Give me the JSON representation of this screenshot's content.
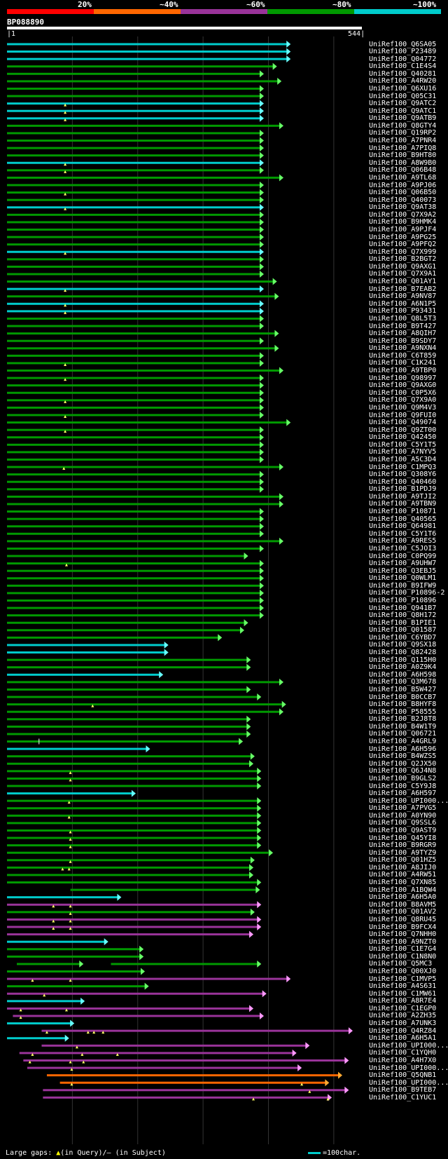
{
  "query": {
    "id": "BP088890",
    "start": "1",
    "end": "544",
    "length": 544
  },
  "identity_scale": {
    "labels": [
      "20%",
      "~40%",
      "~60%",
      "~80%",
      "~100%"
    ],
    "colors": [
      "#ff0000",
      "#ff6600",
      "#993399",
      "#009900",
      "#00cccc"
    ]
  },
  "legend": {
    "gaps_label": "Large gaps:",
    "query_gap": "(in Query)",
    "subject_gap": "(in Subject)",
    "scale_label": "=100char."
  },
  "hits": [
    {
      "name": "UniRef100_Q6SA05",
      "s": 1,
      "e": 435,
      "c": "cyan"
    },
    {
      "name": "UniRef100_P23489",
      "s": 1,
      "e": 435,
      "c": "cyan"
    },
    {
      "name": "UniRef100_Q04772",
      "s": 1,
      "e": 435,
      "c": "cyan"
    },
    {
      "name": "UniRef100_C1E4S4",
      "s": 1,
      "e": 414,
      "c": "green"
    },
    {
      "name": "UniRef100_Q40281",
      "s": 1,
      "e": 394,
      "c": "green"
    },
    {
      "name": "UniRef100_A4RW20",
      "s": 1,
      "e": 421,
      "c": "green"
    },
    {
      "name": "UniRef100_Q6XU16",
      "s": 1,
      "e": 394,
      "c": "green"
    },
    {
      "name": "UniRef100_Q05C31",
      "s": 1,
      "e": 394,
      "c": "green"
    },
    {
      "name": "UniRef100_Q9ATC2",
      "s": 1,
      "e": 394,
      "c": "cyan",
      "gq": [
        90
      ]
    },
    {
      "name": "UniRef100_Q9ATC1",
      "s": 1,
      "e": 394,
      "c": "cyan",
      "gq": [
        90
      ]
    },
    {
      "name": "UniRef100_Q9ATB9",
      "s": 1,
      "e": 394,
      "c": "cyan",
      "gq": [
        90
      ]
    },
    {
      "name": "UniRef100_Q8GTY4",
      "s": 1,
      "e": 424,
      "c": "green"
    },
    {
      "name": "UniRef100_Q19RP2",
      "s": 1,
      "e": 394,
      "c": "green"
    },
    {
      "name": "UniRef100_A7PNR4",
      "s": 1,
      "e": 394,
      "c": "green"
    },
    {
      "name": "UniRef100_A7PIQ8",
      "s": 1,
      "e": 394,
      "c": "green"
    },
    {
      "name": "UniRef100_B9HT80",
      "s": 1,
      "e": 394,
      "c": "green"
    },
    {
      "name": "UniRef100_A8W9B0",
      "s": 1,
      "e": 394,
      "c": "cyan",
      "gq": [
        90
      ]
    },
    {
      "name": "UniRef100_Q06B48",
      "s": 1,
      "e": 394,
      "c": "green",
      "gq": [
        90
      ]
    },
    {
      "name": "UniRef100_A9TL68",
      "s": 1,
      "e": 424,
      "c": "green"
    },
    {
      "name": "UniRef100_A9PJ06",
      "s": 1,
      "e": 394,
      "c": "green"
    },
    {
      "name": "UniRef100_Q06B50",
      "s": 1,
      "e": 394,
      "c": "green",
      "gq": [
        90
      ]
    },
    {
      "name": "UniRef100_Q40073",
      "s": 1,
      "e": 394,
      "c": "green"
    },
    {
      "name": "UniRef100_Q9AT38",
      "s": 1,
      "e": 394,
      "c": "cyan",
      "gq": [
        90
      ]
    },
    {
      "name": "UniRef100_Q7X9A2",
      "s": 1,
      "e": 394,
      "c": "green"
    },
    {
      "name": "UniRef100_B9HMK4",
      "s": 1,
      "e": 394,
      "c": "green"
    },
    {
      "name": "UniRef100_A9PJF4",
      "s": 1,
      "e": 394,
      "c": "green"
    },
    {
      "name": "UniRef100_A9PG25",
      "s": 1,
      "e": 394,
      "c": "green"
    },
    {
      "name": "UniRef100_A9PFQ2",
      "s": 1,
      "e": 394,
      "c": "green"
    },
    {
      "name": "UniRef100_Q7X999",
      "s": 1,
      "e": 394,
      "c": "cyan",
      "gq": [
        90
      ]
    },
    {
      "name": "UniRef100_B2BGT2",
      "s": 1,
      "e": 394,
      "c": "green"
    },
    {
      "name": "UniRef100_Q9AXG1",
      "s": 1,
      "e": 394,
      "c": "green"
    },
    {
      "name": "UniRef100_Q7X9A1",
      "s": 1,
      "e": 394,
      "c": "green"
    },
    {
      "name": "UniRef100_Q01AY1",
      "s": 1,
      "e": 414,
      "c": "green"
    },
    {
      "name": "UniRef100_B7EAB2",
      "s": 1,
      "e": 394,
      "c": "cyan",
      "gq": [
        90
      ]
    },
    {
      "name": "UniRef100_A9NV87",
      "s": 1,
      "e": 417,
      "c": "green"
    },
    {
      "name": "UniRef100_A6N1P5",
      "s": 1,
      "e": 394,
      "c": "cyan",
      "gq": [
        90
      ]
    },
    {
      "name": "UniRef100_P93431",
      "s": 1,
      "e": 394,
      "c": "cyan",
      "gq": [
        90
      ]
    },
    {
      "name": "UniRef100_Q8L5T3",
      "s": 1,
      "e": 394,
      "c": "green"
    },
    {
      "name": "UniRef100_B9T427",
      "s": 1,
      "e": 394,
      "c": "green"
    },
    {
      "name": "UniRef100_A8QIH7",
      "s": 1,
      "e": 417,
      "c": "green"
    },
    {
      "name": "UniRef100_B9SDY7",
      "s": 1,
      "e": 394,
      "c": "green"
    },
    {
      "name": "UniRef100_A9NXN4",
      "s": 1,
      "e": 417,
      "c": "green"
    },
    {
      "name": "UniRef100_C6T859",
      "s": 1,
      "e": 394,
      "c": "green"
    },
    {
      "name": "UniRef100_C1K241",
      "s": 1,
      "e": 394,
      "c": "green",
      "gq": [
        90
      ]
    },
    {
      "name": "UniRef100_A9TBP0",
      "s": 1,
      "e": 424,
      "c": "green"
    },
    {
      "name": "UniRef100_Q98997",
      "s": 1,
      "e": 394,
      "c": "green",
      "gq": [
        90
      ]
    },
    {
      "name": "UniRef100_Q9AXG0",
      "s": 1,
      "e": 394,
      "c": "green"
    },
    {
      "name": "UniRef100_C0P5X6",
      "s": 1,
      "e": 394,
      "c": "green"
    },
    {
      "name": "UniRef100_Q7X9A0",
      "s": 1,
      "e": 394,
      "c": "green",
      "gq": [
        90
      ]
    },
    {
      "name": "UniRef100_Q9M4V3",
      "s": 1,
      "e": 394,
      "c": "green"
    },
    {
      "name": "UniRef100_Q9FUI0",
      "s": 1,
      "e": 394,
      "c": "green",
      "gq": [
        90
      ]
    },
    {
      "name": "UniRef100_Q49074",
      "s": 1,
      "e": 435,
      "c": "green"
    },
    {
      "name": "UniRef100_Q9ZT00",
      "s": 1,
      "e": 394,
      "c": "green",
      "gq": [
        90
      ]
    },
    {
      "name": "UniRef100_Q42450",
      "s": 1,
      "e": 394,
      "c": "green"
    },
    {
      "name": "UniRef100_C5Y1T5",
      "s": 1,
      "e": 394,
      "c": "green"
    },
    {
      "name": "UniRef100_A7NYV5",
      "s": 1,
      "e": 394,
      "c": "green"
    },
    {
      "name": "UniRef100_A5C3D4",
      "s": 1,
      "e": 394,
      "c": "green"
    },
    {
      "name": "UniRef100_C1MPQ3",
      "s": 1,
      "e": 424,
      "c": "green",
      "gq": [
        88
      ]
    },
    {
      "name": "UniRef100_Q308Y6",
      "s": 1,
      "e": 394,
      "c": "green"
    },
    {
      "name": "UniRef100_Q40460",
      "s": 1,
      "e": 394,
      "c": "green"
    },
    {
      "name": "UniRef100_B1PDJ9",
      "s": 1,
      "e": 394,
      "c": "green"
    },
    {
      "name": "UniRef100_A9TJI2",
      "s": 1,
      "e": 424,
      "c": "green"
    },
    {
      "name": "UniRef100_A9TBN9",
      "s": 1,
      "e": 424,
      "c": "green"
    },
    {
      "name": "UniRef100_P10871",
      "s": 1,
      "e": 394,
      "c": "green"
    },
    {
      "name": "UniRef100_Q40565",
      "s": 1,
      "e": 394,
      "c": "green"
    },
    {
      "name": "UniRef100_Q64981",
      "s": 1,
      "e": 394,
      "c": "green"
    },
    {
      "name": "UniRef100_C5Y1T6",
      "s": 1,
      "e": 394,
      "c": "green"
    },
    {
      "name": "UniRef100_A9RES5",
      "s": 1,
      "e": 424,
      "c": "green"
    },
    {
      "name": "UniRef100_C5JOI3",
      "s": 1,
      "e": 394,
      "c": "green"
    },
    {
      "name": "UniRef100_C0PQ99",
      "s": 1,
      "e": 370,
      "c": "green"
    },
    {
      "name": "UniRef100_A9UHW7",
      "s": 1,
      "e": 394,
      "c": "green",
      "gq": [
        92
      ]
    },
    {
      "name": "UniRef100_Q3EBJ5",
      "s": 1,
      "e": 394,
      "c": "green"
    },
    {
      "name": "UniRef100_Q0WLM1",
      "s": 1,
      "e": 394,
      "c": "green"
    },
    {
      "name": "UniRef100_B9IFW9",
      "s": 1,
      "e": 394,
      "c": "green"
    },
    {
      "name": "UniRef100_P10896-2",
      "s": 1,
      "e": 394,
      "c": "green"
    },
    {
      "name": "UniRef100_P10896",
      "s": 1,
      "e": 394,
      "c": "green"
    },
    {
      "name": "UniRef100_Q941B7",
      "s": 1,
      "e": 394,
      "c": "green"
    },
    {
      "name": "UniRef100_Q8H172",
      "s": 1,
      "e": 394,
      "c": "green"
    },
    {
      "name": "UniRef100_B1PIE1",
      "s": 1,
      "e": 370,
      "c": "green"
    },
    {
      "name": "UniRef100_Q01587",
      "s": 1,
      "e": 364,
      "c": "green"
    },
    {
      "name": "UniRef100_C6YBD7",
      "s": 1,
      "e": 330,
      "c": "green"
    },
    {
      "name": "UniRef100_Q9SX18",
      "s": 1,
      "e": 248,
      "c": "cyan"
    },
    {
      "name": "UniRef100_Q82428",
      "s": 1,
      "e": 248,
      "c": "cyan"
    },
    {
      "name": "UniRef100_Q115H0",
      "s": 1,
      "e": 374,
      "c": "green"
    },
    {
      "name": "UniRef100_A0Z9K4",
      "s": 1,
      "e": 374,
      "c": "green"
    },
    {
      "name": "UniRef100_A6H598",
      "s": 1,
      "e": 240,
      "c": "cyan"
    },
    {
      "name": "UniRef100_Q3M678",
      "s": 1,
      "e": 424,
      "c": "green"
    },
    {
      "name": "UniRef100_B5W427",
      "s": 1,
      "e": 374,
      "c": "green"
    },
    {
      "name": "UniRef100_B0CCB7",
      "s": 1,
      "e": 390,
      "c": "green"
    },
    {
      "name": "UniRef100_B8HYF8",
      "s": 1,
      "e": 428,
      "c": "green",
      "gq": [
        132
      ]
    },
    {
      "name": "UniRef100_P58555",
      "s": 1,
      "e": 424,
      "c": "green"
    },
    {
      "name": "UniRef100_B2J8T8",
      "s": 1,
      "e": 374,
      "c": "green"
    },
    {
      "name": "UniRef100_B4W1T9",
      "s": 1,
      "e": 374,
      "c": "green"
    },
    {
      "name": "UniRef100_Q06721",
      "s": 1,
      "e": 374,
      "c": "green"
    },
    {
      "name": "UniRef100_A4GRL9",
      "s": 1,
      "e": 362,
      "c": "green",
      "gs": [
        50
      ]
    },
    {
      "name": "UniRef100_A6H596",
      "s": 1,
      "e": 220,
      "c": "cyan"
    },
    {
      "name": "UniRef100_B4WZS5",
      "s": 1,
      "e": 380,
      "c": "green"
    },
    {
      "name": "UniRef100_Q2JX50",
      "s": 1,
      "e": 378,
      "c": "green"
    },
    {
      "name": "UniRef100_Q6J4N8",
      "s": 1,
      "e": 390,
      "c": "green",
      "gq": [
        98
      ]
    },
    {
      "name": "UniRef100_B9GLS2",
      "s": 1,
      "e": 390,
      "c": "green",
      "gq": [
        98
      ]
    },
    {
      "name": "UniRef100_C5Y9J8",
      "s": 1,
      "e": 390,
      "c": "green"
    },
    {
      "name": "UniRef100_A6H597",
      "s": 1,
      "e": 198,
      "c": "cyan"
    },
    {
      "name": "UniRef100_UPI000...",
      "s": 1,
      "e": 390,
      "c": "green",
      "gq": [
        96
      ]
    },
    {
      "name": "UniRef100_A7PVG5",
      "s": 1,
      "e": 390,
      "c": "green"
    },
    {
      "name": "UniRef100_A0YN90",
      "s": 1,
      "e": 390,
      "c": "green",
      "gq": [
        96
      ]
    },
    {
      "name": "UniRef100_Q9SSL6",
      "s": 1,
      "e": 390,
      "c": "green"
    },
    {
      "name": "UniRef100_Q9AST9",
      "s": 1,
      "e": 390,
      "c": "green",
      "gq": [
        98
      ]
    },
    {
      "name": "UniRef100_Q45YI8",
      "s": 1,
      "e": 390,
      "c": "green",
      "gq": [
        98
      ]
    },
    {
      "name": "UniRef100_B9RGR9",
      "s": 1,
      "e": 390,
      "c": "green",
      "gq": [
        98
      ]
    },
    {
      "name": "UniRef100_A9TYZ9",
      "s": 1,
      "e": 408,
      "c": "green"
    },
    {
      "name": "UniRef100_Q01HZ5",
      "s": 1,
      "e": 380,
      "c": "green",
      "gq": [
        98
      ]
    },
    {
      "name": "UniRef100_A8JIJ0",
      "s": 1,
      "e": 378,
      "c": "green",
      "gq": [
        86,
        96
      ]
    },
    {
      "name": "UniRef100_A4RW51",
      "s": 1,
      "e": 378,
      "c": "green"
    },
    {
      "name": "UniRef100_Q7XN85",
      "s": 1,
      "e": 390,
      "c": "green"
    },
    {
      "name": "UniRef100_A1BQW4",
      "s": 98,
      "e": 388,
      "c": "green"
    },
    {
      "name": "UniRef100_A6H5A0",
      "s": 1,
      "e": 176,
      "c": "cyan"
    },
    {
      "name": "UniRef100_B8AVM5",
      "s": 1,
      "e": 390,
      "c": "purple",
      "gq": [
        72,
        98
      ]
    },
    {
      "name": "UniRef100_Q01AV2",
      "s": 1,
      "e": 380,
      "c": "green",
      "gq": [
        98
      ]
    },
    {
      "name": "UniRef100_Q8RU45",
      "s": 1,
      "e": 390,
      "c": "purple",
      "gq": [
        72,
        98
      ]
    },
    {
      "name": "UniRef100_B9FCX4",
      "s": 1,
      "e": 390,
      "c": "purple",
      "gq": [
        72,
        98
      ]
    },
    {
      "name": "UniRef100_Q7NHH0",
      "s": 1,
      "e": 378,
      "c": "purple"
    },
    {
      "name": "UniRef100_A9NZT0",
      "s": 1,
      "e": 156,
      "c": "cyan"
    },
    {
      "name": "UniRef100_C1E7G4",
      "s": 1,
      "e": 210,
      "c": "green"
    },
    {
      "name": "UniRef100_C1N8N0",
      "s": 1,
      "e": 210,
      "c": "green"
    },
    {
      "name": "UniRef100_Q5MC3",
      "s": 16,
      "e": 118,
      "c": "green",
      "s2": 160,
      "e2": 390
    },
    {
      "name": "UniRef100_Q00XJ0",
      "s": 1,
      "e": 212,
      "c": "green"
    },
    {
      "name": "UniRef100_C1MVP5",
      "s": 1,
      "e": 435,
      "c": "purple",
      "gq": [
        40,
        98
      ]
    },
    {
      "name": "UniRef100_A4S631",
      "s": 1,
      "e": 218,
      "c": "green"
    },
    {
      "name": "UniRef100_C1MW61",
      "s": 1,
      "e": 398,
      "c": "purple",
      "gq": [
        58
      ]
    },
    {
      "name": "UniRef100_A8R7E4",
      "s": 1,
      "e": 120,
      "c": "cyan"
    },
    {
      "name": "UniRef100_C1EGP0",
      "s": 1,
      "e": 378,
      "c": "purple",
      "gq": [
        22,
        92
      ]
    },
    {
      "name": "UniRef100_A2ZH35",
      "s": 10,
      "e": 394,
      "c": "purple",
      "gq": [
        22
      ]
    },
    {
      "name": "UniRef100_A7UNK3",
      "s": 1,
      "e": 104,
      "c": "cyan"
    },
    {
      "name": "UniRef100_Q4RZ84",
      "s": 54,
      "e": 530,
      "c": "purple",
      "gq": [
        62,
        125,
        134,
        148
      ]
    },
    {
      "name": "UniRef100_A6H5A1",
      "s": 1,
      "e": 96,
      "c": "cyan"
    },
    {
      "name": "UniRef100_UPI000...",
      "s": 54,
      "e": 464,
      "c": "purple",
      "gq": [
        108
      ]
    },
    {
      "name": "UniRef100_C1YQH0",
      "s": 20,
      "e": 444,
      "c": "purple",
      "gq": [
        40,
        116,
        170
      ]
    },
    {
      "name": "UniRef100_A4H7X0",
      "s": 26,
      "e": 524,
      "c": "purple",
      "gq": [
        36,
        98,
        118
      ]
    },
    {
      "name": "UniRef100_UPI000...",
      "s": 32,
      "e": 452,
      "c": "purple",
      "gq": [
        100
      ]
    },
    {
      "name": "UniRef100_Q5QNB1",
      "s": 62,
      "e": 514,
      "c": "orange"
    },
    {
      "name": "UniRef100_UPI000...",
      "s": 82,
      "e": 494,
      "c": "orange",
      "gq": [
        100,
        452
      ]
    },
    {
      "name": "UniRef100_B9TEB7",
      "s": 56,
      "e": 524,
      "c": "purple",
      "gq": [
        464
      ]
    },
    {
      "name": "UniRef100_C1YUC1",
      "s": 56,
      "e": 498,
      "c": "purple",
      "gq": [
        378,
        492
      ]
    }
  ]
}
